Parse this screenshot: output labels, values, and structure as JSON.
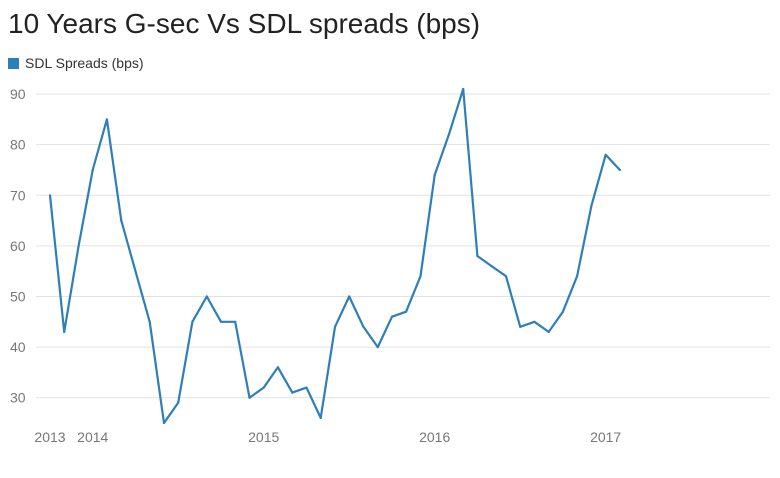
{
  "chart_data": {
    "type": "line",
    "title": "10 Years G-sec Vs SDL spreads (bps)",
    "xlabel": "",
    "ylabel": "",
    "legend_position": "top-left",
    "grid": true,
    "color": "#2e7fb8",
    "ylim": [
      25,
      91
    ],
    "yticks": [
      30,
      40,
      50,
      60,
      70,
      80,
      90
    ],
    "xlim": [
      2013.0,
      2017.1
    ],
    "xticks": [
      {
        "label": "2013",
        "x": 2013.0
      },
      {
        "label": "2014",
        "x": 2013.25
      },
      {
        "label": "2015",
        "x": 2014.25
      },
      {
        "label": "2016",
        "x": 2015.25
      },
      {
        "label": "2017",
        "x": 2016.25
      }
    ],
    "series": [
      {
        "name": "SDL Spreads (bps)",
        "points": [
          [
            2013.0,
            70
          ],
          [
            2013.083,
            43
          ],
          [
            2013.167,
            60
          ],
          [
            2013.25,
            75
          ],
          [
            2013.333,
            85
          ],
          [
            2013.417,
            65
          ],
          [
            2013.5,
            55
          ],
          [
            2013.583,
            45
          ],
          [
            2013.667,
            25
          ],
          [
            2013.75,
            29
          ],
          [
            2013.833,
            45
          ],
          [
            2013.917,
            50
          ],
          [
            2014.0,
            45
          ],
          [
            2014.083,
            45
          ],
          [
            2014.167,
            30
          ],
          [
            2014.25,
            32
          ],
          [
            2014.333,
            36
          ],
          [
            2014.417,
            31
          ],
          [
            2014.5,
            32
          ],
          [
            2014.583,
            26
          ],
          [
            2014.667,
            44
          ],
          [
            2014.75,
            50
          ],
          [
            2014.833,
            44
          ],
          [
            2014.917,
            40
          ],
          [
            2015.0,
            46
          ],
          [
            2015.083,
            47
          ],
          [
            2015.167,
            54
          ],
          [
            2015.25,
            74
          ],
          [
            2015.333,
            82
          ],
          [
            2015.417,
            91
          ],
          [
            2015.5,
            58
          ],
          [
            2015.583,
            56
          ],
          [
            2015.667,
            54
          ],
          [
            2015.75,
            44
          ],
          [
            2015.833,
            45
          ],
          [
            2015.917,
            43
          ],
          [
            2016.0,
            47
          ],
          [
            2016.083,
            54
          ],
          [
            2016.167,
            68
          ],
          [
            2016.25,
            78
          ],
          [
            2016.333,
            75
          ]
        ]
      }
    ]
  }
}
